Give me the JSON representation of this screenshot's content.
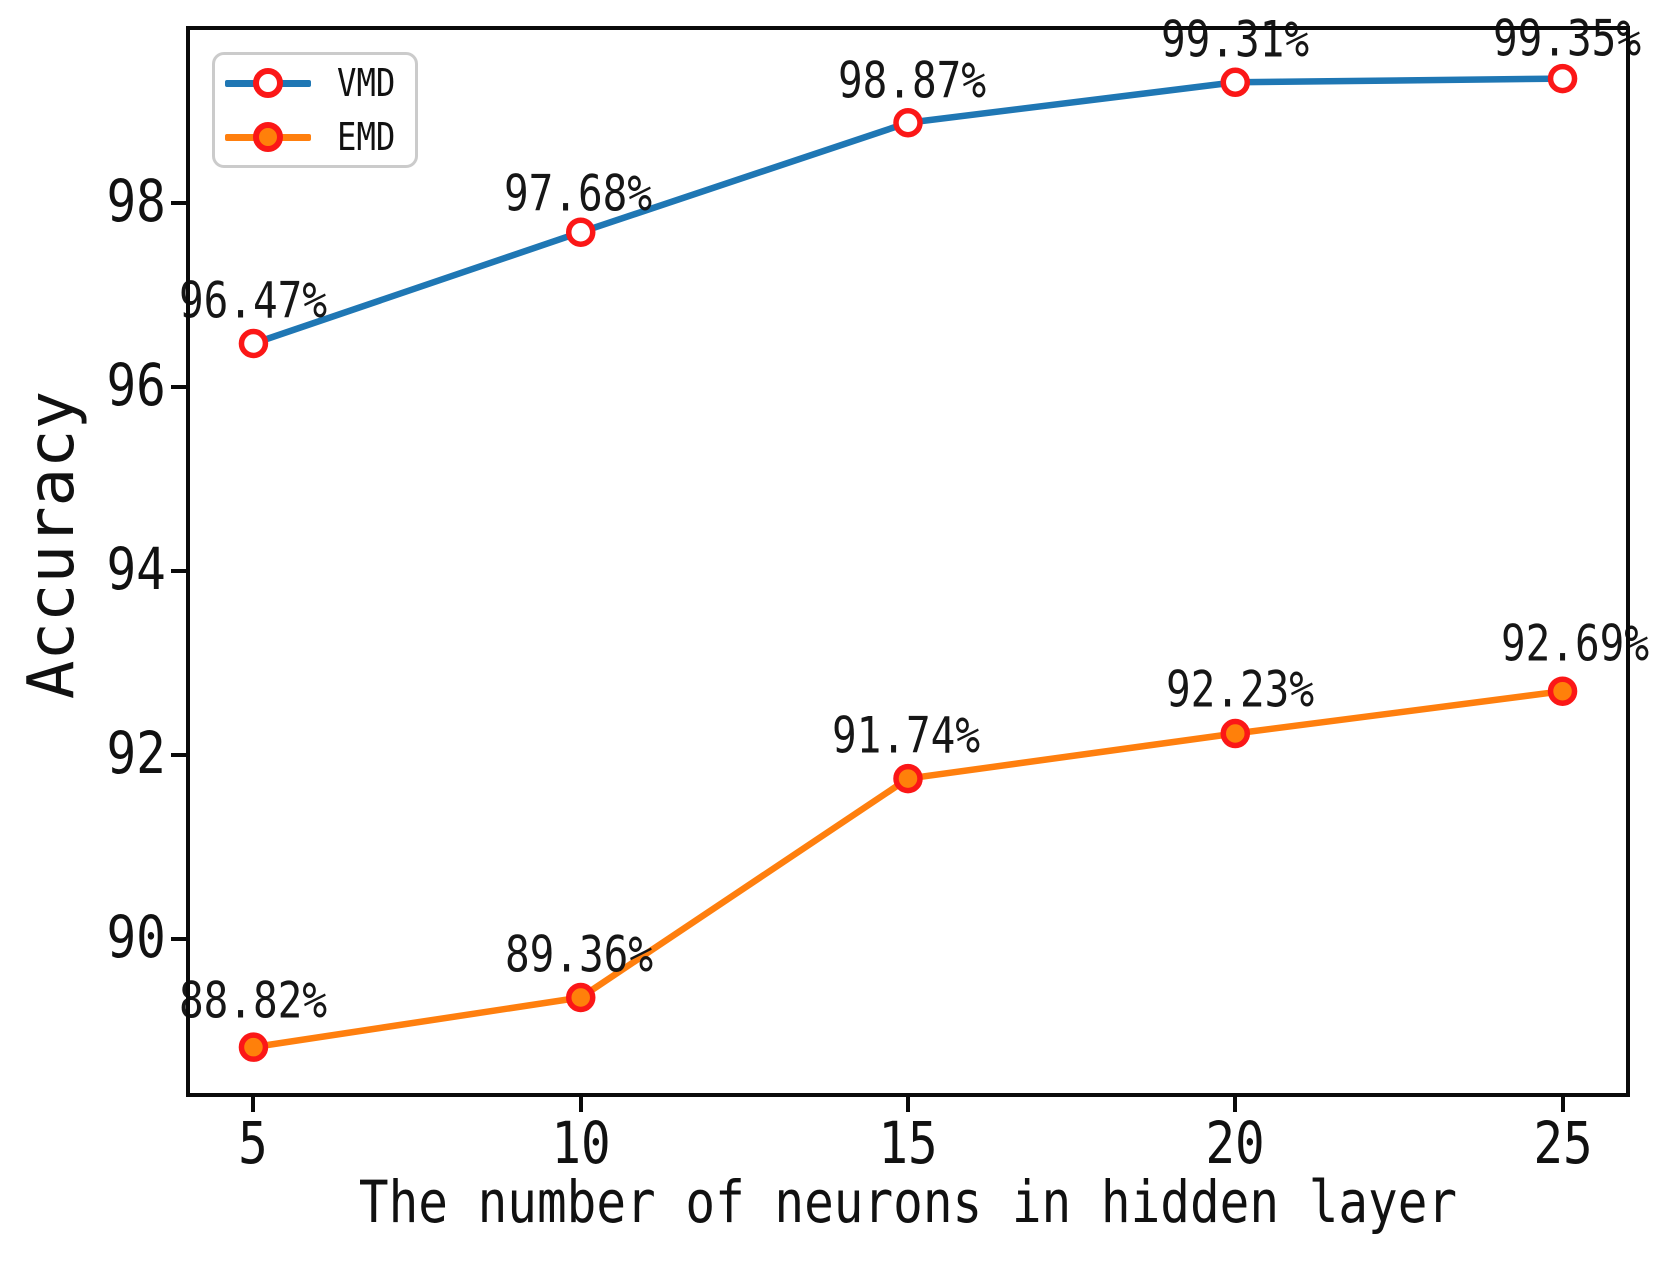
{
  "chart_data": {
    "type": "line",
    "title": "",
    "xlabel": "The number of neurons in hidden layer",
    "ylabel": "Accuracy",
    "x": [
      5,
      10,
      15,
      20,
      25
    ],
    "x_tick_labels": [
      "5",
      "10",
      "15",
      "20",
      "25"
    ],
    "y_ticks": [
      90,
      92,
      94,
      96,
      98
    ],
    "y_tick_labels": [
      "90",
      "92",
      "94",
      "96",
      "98"
    ],
    "xlim": [
      4,
      26
    ],
    "ylim": [
      88.3,
      99.9
    ],
    "grid": false,
    "legend_position": "upper-left",
    "series": [
      {
        "name": "VMD",
        "values": [
          96.47,
          97.68,
          98.87,
          99.31,
          99.35
        ],
        "point_labels": [
          "96.47%",
          "97.68%",
          "98.87%",
          "99.31%",
          "99.35%"
        ],
        "line_color": "#1f77b4",
        "marker_face": "#ffffff",
        "marker_edge": "#fb1717",
        "label_offsets": [
          {
            "dx": 0,
            "dy": -43
          },
          {
            "dx": -3,
            "dy": -38
          },
          {
            "dx": 4,
            "dy": -42
          },
          {
            "dx": 0,
            "dy": -42
          },
          {
            "dx": 4,
            "dy": -40
          }
        ]
      },
      {
        "name": "EMD",
        "values": [
          88.82,
          89.36,
          91.74,
          92.23,
          92.69
        ],
        "point_labels": [
          "88.82%",
          "89.36%",
          "91.74%",
          "92.23%",
          "92.69%"
        ],
        "line_color": "#ff7f0e",
        "marker_face": "#ff800a",
        "marker_edge": "#fb1717",
        "label_offsets": [
          {
            "dx": 0,
            "dy": -46
          },
          {
            "dx": -2,
            "dy": -42
          },
          {
            "dx": -2,
            "dy": -43
          },
          {
            "dx": 5,
            "dy": -44
          },
          {
            "dx": 12,
            "dy": -47
          }
        ]
      }
    ]
  },
  "colors": {
    "spine": "#0a0a0a",
    "text": "#161616",
    "legend_border": "#cbcbcb",
    "background": "#ffffff"
  }
}
